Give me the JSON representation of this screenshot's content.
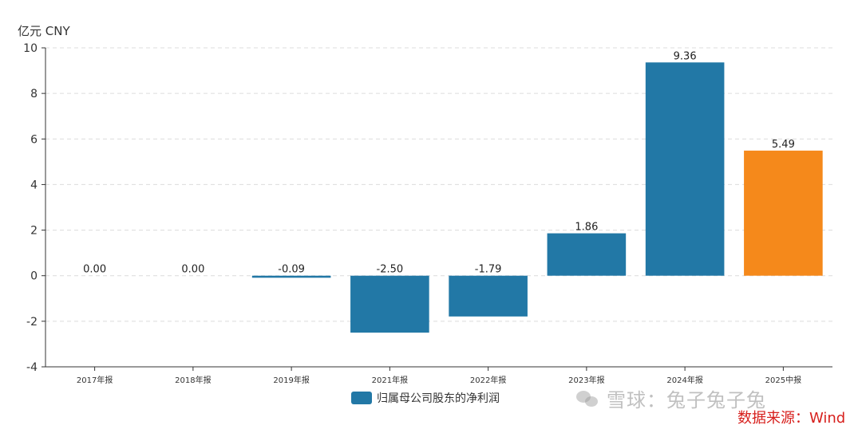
{
  "unit_label": "亿元  CNY",
  "legend": {
    "label": "归属母公司股东的净利润",
    "color": "#2278a6"
  },
  "watermark": {
    "text": "雪球：兔子兔子兔"
  },
  "source": "数据来源：Wind",
  "chart_data": {
    "type": "bar",
    "categories": [
      "2017年报",
      "2018年报",
      "2019年报",
      "2021年报",
      "2022年报",
      "2023年报",
      "2024年报",
      "2025中报"
    ],
    "series": [
      {
        "name": "归属母公司股东的净利润",
        "values": [
          0.0,
          0.0,
          -0.09,
          -2.5,
          -1.79,
          1.86,
          9.36,
          5.49
        ],
        "labels": [
          "0.00",
          "0.00",
          "-0.09",
          "-2.50",
          "-1.79",
          "1.86",
          "9.36",
          "5.49"
        ],
        "colors": [
          "#2278a6",
          "#2278a6",
          "#2278a6",
          "#2278a6",
          "#2278a6",
          "#2278a6",
          "#2278a6",
          "#f5891b"
        ]
      }
    ],
    "yticks": [
      -4,
      -2,
      0,
      2,
      4,
      6,
      8,
      10
    ],
    "ylim": [
      -4,
      10
    ],
    "grid": true
  }
}
